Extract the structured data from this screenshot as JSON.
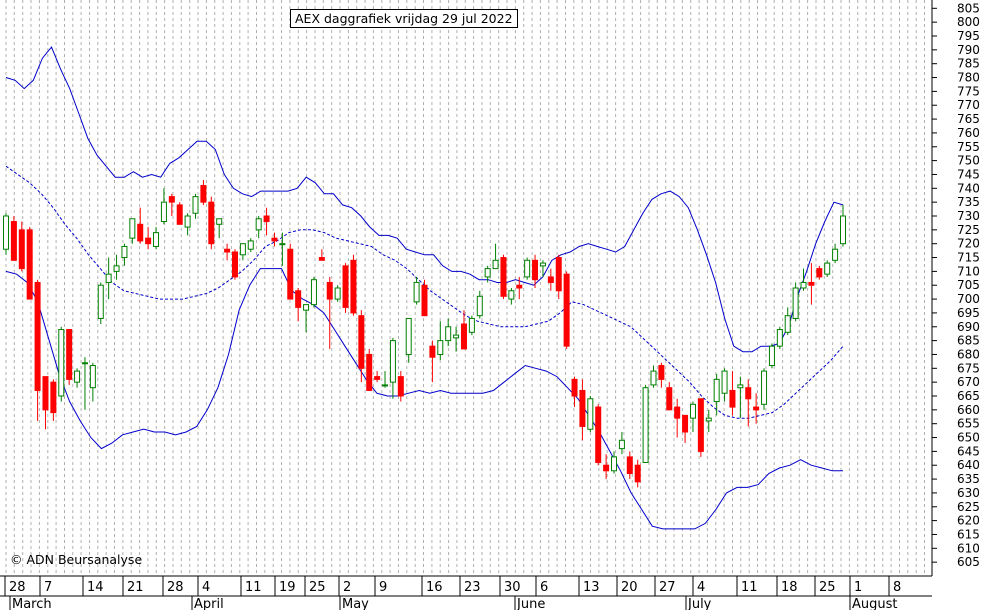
{
  "title": "AEX daggrafiek vrijdag 29 jul 2022",
  "copyright": "© ADN Beursanalyse",
  "chart_data": {
    "type": "candlestick",
    "title": "AEX daggrafiek vrijdag 29 jul 2022",
    "y_axis": {
      "ylim": [
        600,
        808
      ],
      "ticks": [
        605,
        610,
        615,
        620,
        625,
        630,
        635,
        640,
        645,
        650,
        655,
        660,
        665,
        670,
        675,
        680,
        685,
        690,
        695,
        700,
        705,
        710,
        715,
        720,
        725,
        730,
        735,
        740,
        745,
        750,
        755,
        760,
        765,
        770,
        775,
        780,
        785,
        790,
        795,
        800,
        805
      ],
      "position": "right"
    },
    "x_axis": {
      "day_labels": [
        "28",
        "7",
        "14",
        "21",
        "28",
        "4",
        "11",
        "19",
        "25",
        "2",
        "9",
        "16",
        "23",
        "30",
        "6",
        "13",
        "20",
        "27",
        "4",
        "11",
        "18",
        "25",
        "1",
        "8"
      ],
      "month_labels": [
        "March",
        "April",
        "May",
        "June",
        "July",
        "August"
      ]
    },
    "grid": "vertical-dashed",
    "colors": {
      "up": "#008000",
      "down": "#ff0000",
      "band": "#0000cc",
      "average": "#0000cc"
    },
    "candles": [
      {
        "o": 718,
        "h": 731,
        "l": 716,
        "c": 730
      },
      {
        "o": 728,
        "h": 730,
        "l": 715,
        "c": 714
      },
      {
        "o": 725,
        "h": 728,
        "l": 710,
        "c": 711
      },
      {
        "o": 725,
        "h": 726,
        "l": 700,
        "c": 700
      },
      {
        "o": 706,
        "h": 707,
        "l": 656,
        "c": 667
      },
      {
        "o": 672,
        "h": 672,
        "l": 653,
        "c": 660
      },
      {
        "o": 670,
        "h": 671,
        "l": 656,
        "c": 659
      },
      {
        "o": 665,
        "h": 690,
        "l": 663,
        "c": 689
      },
      {
        "o": 689,
        "h": 689,
        "l": 669,
        "c": 671
      },
      {
        "o": 670,
        "h": 675,
        "l": 668,
        "c": 674
      },
      {
        "o": 677,
        "h": 679,
        "l": 660,
        "c": 677
      },
      {
        "o": 668,
        "h": 677,
        "l": 663,
        "c": 676
      },
      {
        "o": 693,
        "h": 706,
        "l": 691,
        "c": 705
      },
      {
        "o": 706,
        "h": 715,
        "l": 700,
        "c": 709
      },
      {
        "o": 710,
        "h": 716,
        "l": 707,
        "c": 712
      },
      {
        "o": 715,
        "h": 720,
        "l": 712,
        "c": 719
      },
      {
        "o": 722,
        "h": 729,
        "l": 720,
        "c": 729
      },
      {
        "o": 727,
        "h": 733,
        "l": 720,
        "c": 721
      },
      {
        "o": 722,
        "h": 726,
        "l": 718,
        "c": 720
      },
      {
        "o": 719,
        "h": 726,
        "l": 718,
        "c": 724
      },
      {
        "o": 728,
        "h": 740,
        "l": 727,
        "c": 735
      },
      {
        "o": 737,
        "h": 738,
        "l": 730,
        "c": 735
      },
      {
        "o": 734,
        "h": 735,
        "l": 727,
        "c": 727
      },
      {
        "o": 726,
        "h": 731,
        "l": 723,
        "c": 730
      },
      {
        "o": 731,
        "h": 738,
        "l": 729,
        "c": 737
      },
      {
        "o": 741,
        "h": 743,
        "l": 734,
        "c": 735
      },
      {
        "o": 735,
        "h": 737,
        "l": 718,
        "c": 720
      },
      {
        "o": 727,
        "h": 729,
        "l": 722,
        "c": 729
      },
      {
        "o": 718,
        "h": 720,
        "l": 714,
        "c": 717
      },
      {
        "o": 717,
        "h": 718,
        "l": 707,
        "c": 708
      },
      {
        "o": 716,
        "h": 720,
        "l": 714,
        "c": 720
      },
      {
        "o": 718,
        "h": 722,
        "l": 717,
        "c": 721
      },
      {
        "o": 725,
        "h": 730,
        "l": 722,
        "c": 729
      },
      {
        "o": 730,
        "h": 733,
        "l": 723,
        "c": 728
      },
      {
        "o": 722,
        "h": 724,
        "l": 719,
        "c": 721
      },
      {
        "o": 720,
        "h": 724,
        "l": 712,
        "c": 720
      },
      {
        "o": 718,
        "h": 720,
        "l": 700,
        "c": 700
      },
      {
        "o": 703,
        "h": 704,
        "l": 692,
        "c": 697
      },
      {
        "o": 696,
        "h": 697,
        "l": 688,
        "c": 698
      },
      {
        "o": 698,
        "h": 708,
        "l": 697,
        "c": 707
      },
      {
        "o": 715,
        "h": 718,
        "l": 714,
        "c": 714
      },
      {
        "o": 706,
        "h": 708,
        "l": 682,
        "c": 700
      },
      {
        "o": 700,
        "h": 705,
        "l": 699,
        "c": 704
      },
      {
        "o": 712,
        "h": 713,
        "l": 695,
        "c": 697
      },
      {
        "o": 714,
        "h": 716,
        "l": 694,
        "c": 695
      },
      {
        "o": 694,
        "h": 696,
        "l": 670,
        "c": 675
      },
      {
        "o": 680,
        "h": 682,
        "l": 667,
        "c": 667
      },
      {
        "o": 672,
        "h": 674,
        "l": 670,
        "c": 671
      },
      {
        "o": 669,
        "h": 674,
        "l": 668,
        "c": 669
      },
      {
        "o": 670,
        "h": 686,
        "l": 664,
        "c": 685
      },
      {
        "o": 672,
        "h": 674,
        "l": 663,
        "c": 665
      },
      {
        "o": 680,
        "h": 693,
        "l": 677,
        "c": 693
      },
      {
        "o": 699,
        "h": 708,
        "l": 698,
        "c": 706
      },
      {
        "o": 705,
        "h": 707,
        "l": 694,
        "c": 694
      },
      {
        "o": 683,
        "h": 685,
        "l": 670,
        "c": 679
      },
      {
        "o": 680,
        "h": 692,
        "l": 678,
        "c": 685
      },
      {
        "o": 685,
        "h": 693,
        "l": 683,
        "c": 690
      },
      {
        "o": 686,
        "h": 690,
        "l": 681,
        "c": 687
      },
      {
        "o": 691,
        "h": 696,
        "l": 682,
        "c": 682
      },
      {
        "o": 688,
        "h": 694,
        "l": 687,
        "c": 693
      },
      {
        "o": 694,
        "h": 703,
        "l": 693,
        "c": 701
      },
      {
        "o": 708,
        "h": 712,
        "l": 706,
        "c": 711
      },
      {
        "o": 711,
        "h": 720,
        "l": 711,
        "c": 714
      },
      {
        "o": 715,
        "h": 716,
        "l": 700,
        "c": 701
      },
      {
        "o": 700,
        "h": 704,
        "l": 698,
        "c": 703
      },
      {
        "o": 705,
        "h": 708,
        "l": 700,
        "c": 704
      },
      {
        "o": 708,
        "h": 715,
        "l": 707,
        "c": 714
      },
      {
        "o": 714,
        "h": 716,
        "l": 704,
        "c": 707
      },
      {
        "o": 712,
        "h": 714,
        "l": 708,
        "c": 713
      },
      {
        "o": 708,
        "h": 711,
        "l": 703,
        "c": 706
      },
      {
        "o": 715,
        "h": 716,
        "l": 700,
        "c": 703
      },
      {
        "o": 709,
        "h": 710,
        "l": 682,
        "c": 683
      },
      {
        "o": 671,
        "h": 672,
        "l": 661,
        "c": 665
      },
      {
        "o": 667,
        "h": 671,
        "l": 649,
        "c": 654
      },
      {
        "o": 653,
        "h": 665,
        "l": 652,
        "c": 664
      },
      {
        "o": 661,
        "h": 662,
        "l": 640,
        "c": 641
      },
      {
        "o": 640,
        "h": 644,
        "l": 635,
        "c": 638
      },
      {
        "o": 638,
        "h": 645,
        "l": 637,
        "c": 643
      },
      {
        "o": 646,
        "h": 652,
        "l": 644,
        "c": 649
      },
      {
        "o": 643,
        "h": 645,
        "l": 635,
        "c": 637
      },
      {
        "o": 640,
        "h": 642,
        "l": 632,
        "c": 634
      },
      {
        "o": 641,
        "h": 669,
        "l": 641,
        "c": 668
      },
      {
        "o": 669,
        "h": 676,
        "l": 668,
        "c": 674
      },
      {
        "o": 676,
        "h": 677,
        "l": 668,
        "c": 671
      },
      {
        "o": 668,
        "h": 670,
        "l": 660,
        "c": 660
      },
      {
        "o": 661,
        "h": 664,
        "l": 650,
        "c": 657
      },
      {
        "o": 658,
        "h": 658,
        "l": 648,
        "c": 652
      },
      {
        "o": 657,
        "h": 663,
        "l": 652,
        "c": 662
      },
      {
        "o": 664,
        "h": 664,
        "l": 643,
        "c": 645
      },
      {
        "o": 656,
        "h": 660,
        "l": 652,
        "c": 657
      },
      {
        "o": 663,
        "h": 673,
        "l": 658,
        "c": 671
      },
      {
        "o": 666,
        "h": 675,
        "l": 663,
        "c": 674
      },
      {
        "o": 667,
        "h": 674,
        "l": 658,
        "c": 661
      },
      {
        "o": 668,
        "h": 672,
        "l": 657,
        "c": 669
      },
      {
        "o": 668,
        "h": 671,
        "l": 654,
        "c": 664
      },
      {
        "o": 661,
        "h": 666,
        "l": 655,
        "c": 660
      },
      {
        "o": 662,
        "h": 675,
        "l": 660,
        "c": 674
      },
      {
        "o": 676,
        "h": 684,
        "l": 675,
        "c": 683
      },
      {
        "o": 683,
        "h": 690,
        "l": 682,
        "c": 689
      },
      {
        "o": 688,
        "h": 697,
        "l": 687,
        "c": 694
      },
      {
        "o": 693,
        "h": 706,
        "l": 692,
        "c": 704
      },
      {
        "o": 704,
        "h": 711,
        "l": 703,
        "c": 706
      },
      {
        "o": 706,
        "h": 713,
        "l": 698,
        "c": 705
      },
      {
        "o": 711,
        "h": 712,
        "l": 707,
        "c": 708
      },
      {
        "o": 709,
        "h": 714,
        "l": 708,
        "c": 713
      },
      {
        "o": 714,
        "h": 720,
        "l": 713,
        "c": 718
      },
      {
        "o": 720,
        "h": 734,
        "l": 719,
        "c": 730
      }
    ],
    "bollinger_upper": [
      780,
      779,
      776,
      779,
      787,
      791,
      783,
      776,
      767,
      758,
      752,
      748,
      744,
      744,
      746,
      744,
      745,
      744,
      749,
      751,
      754,
      757,
      757,
      754,
      745,
      740,
      738,
      737,
      739,
      739,
      739,
      739,
      740,
      744,
      742,
      738,
      738,
      734,
      733,
      730,
      726,
      723,
      723,
      722,
      718,
      717,
      716,
      716,
      712,
      710,
      710,
      709,
      707,
      707,
      706,
      706,
      707,
      706,
      705,
      708,
      714,
      716,
      717,
      719,
      720,
      719,
      718,
      717,
      719,
      725,
      731,
      736,
      738,
      739,
      737,
      733,
      725,
      716,
      706,
      693,
      683,
      681,
      681,
      683,
      683,
      684,
      690,
      701,
      710,
      720,
      728,
      735,
      734
    ],
    "bollinger_mid": [
      748,
      745,
      742,
      738,
      733,
      727,
      722,
      716,
      711,
      706,
      703,
      702,
      701,
      700,
      700,
      700,
      701,
      702,
      704,
      707,
      710,
      714,
      719,
      721,
      724,
      725,
      725,
      724,
      722,
      721,
      720,
      719,
      716,
      714,
      711,
      707,
      703,
      700,
      697,
      694,
      692,
      691,
      690,
      690,
      690,
      691,
      692,
      695,
      699,
      698,
      696,
      694,
      692,
      690,
      686,
      682,
      678,
      674,
      670,
      665,
      661,
      658,
      657,
      657,
      658,
      659,
      662,
      666,
      670,
      674,
      678,
      683
    ],
    "bollinger_lower": [
      710,
      709,
      706,
      699,
      686,
      673,
      663,
      656,
      650,
      646,
      648,
      651,
      652,
      653,
      652,
      652,
      651,
      652,
      654,
      660,
      668,
      680,
      696,
      705,
      711,
      711,
      711,
      703,
      700,
      698,
      695,
      689,
      683,
      677,
      671,
      666,
      665,
      665,
      666,
      667,
      666,
      667,
      666,
      666,
      666,
      666,
      667,
      670,
      673,
      676,
      675,
      674,
      672,
      668,
      664,
      658,
      652,
      645,
      638,
      630,
      624,
      618,
      617,
      617,
      617,
      617,
      619,
      624,
      630,
      632,
      632,
      633,
      637,
      639,
      640,
      642,
      640,
      639,
      638,
      638
    ]
  }
}
